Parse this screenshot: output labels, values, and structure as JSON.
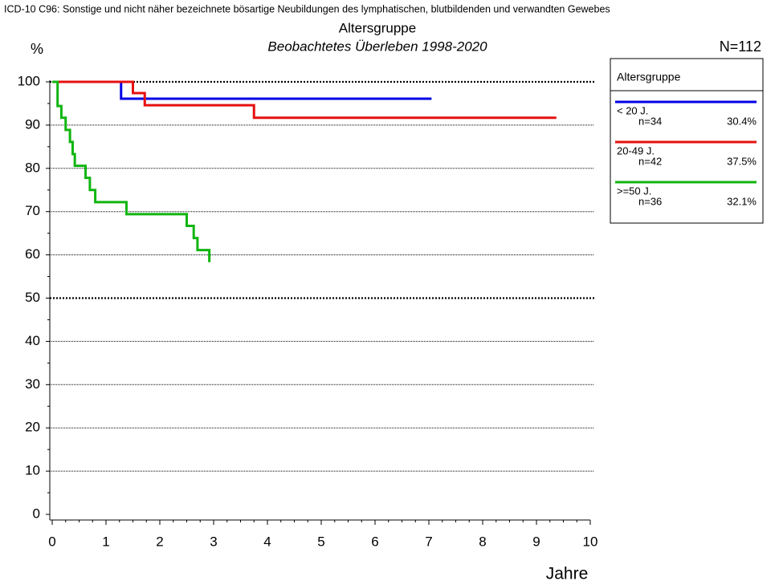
{
  "chart_data": {
    "type": "step",
    "header": "ICD-10 C96: Sonstige und nicht näher bezeichnete bösartige Neubildungen des lymphatischen, blutbildenden und verwandten Gewebes",
    "title": "Altersgruppe",
    "subtitle": "Beobachtetes Überleben 1998-2020",
    "y_label": "%",
    "x_label": "Jahre",
    "total": "N=112",
    "legend_title": "Altersgruppe",
    "xlim": [
      0,
      10
    ],
    "xticks": [
      0,
      1,
      2,
      3,
      4,
      5,
      6,
      7,
      8,
      9,
      10
    ],
    "ylim": [
      0,
      100
    ],
    "yticks": [
      0,
      10,
      20,
      30,
      40,
      50,
      60,
      70,
      80,
      90,
      100
    ],
    "grid": true,
    "bold_gridlines": [
      50,
      100
    ],
    "series": [
      {
        "name": "< 20 J.",
        "n_label": "n=34",
        "share_label": "30.4%",
        "color": "#0000e6",
        "x": [
          0,
          1.28,
          7.05
        ],
        "values": [
          100,
          96.1,
          96.1
        ]
      },
      {
        "name": "20-49 J.",
        "n_label": "n=42",
        "share_label": "37.5%",
        "color": "#e61010",
        "x": [
          0,
          1.5,
          1.72,
          3.75,
          9.37
        ],
        "values": [
          100,
          97.4,
          94.6,
          91.7,
          91.7
        ]
      },
      {
        "name": ">=50 J.",
        "n_label": "n=36",
        "share_label": "32.1%",
        "color": "#10b510",
        "x": [
          0,
          0.1,
          0.17,
          0.25,
          0.33,
          0.38,
          0.42,
          0.62,
          0.7,
          0.8,
          1.38,
          2.5,
          2.63,
          2.7,
          2.92
        ],
        "values": [
          100,
          94.4,
          91.7,
          88.9,
          86.1,
          83.3,
          80.6,
          77.8,
          75.0,
          72.2,
          69.4,
          66.7,
          63.9,
          61.1,
          58.3
        ]
      }
    ]
  }
}
